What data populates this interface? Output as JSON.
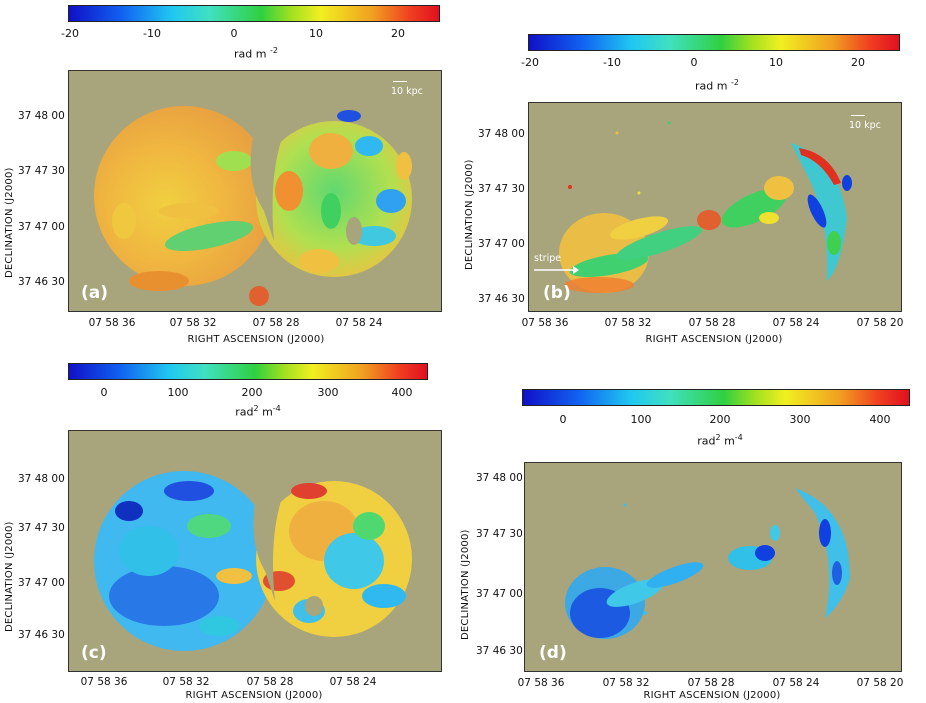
{
  "panels": {
    "a": {
      "label": "(a)",
      "colorbar_ticks": [
        "-20",
        "-10",
        "0",
        "10",
        "20"
      ],
      "unit_text": "rad m",
      "unit_exp": "-2",
      "x_ticks": [
        "07 58 36",
        "07 58 32",
        "07 58 28",
        "07 58 24"
      ],
      "y_ticks": [
        "37 48 00",
        "37 47 30",
        "37 47 00",
        "37 46 30"
      ],
      "x_title": "RIGHT ASCENSION   (J2000)",
      "y_title": "DECLINATION   (J2000)",
      "scale_label": "10 kpc"
    },
    "b": {
      "label": "(b)",
      "colorbar_ticks": [
        "-20",
        "-10",
        "0",
        "10",
        "20"
      ],
      "unit_text": "rad m",
      "unit_exp": "-2",
      "x_ticks": [
        "07 58 36",
        "07 58 32",
        "07 58 28",
        "07 58 24",
        "07 58 20"
      ],
      "y_ticks": [
        "37 48 00",
        "37 47 30",
        "37 47 00",
        "37 46 30"
      ],
      "x_title": "RIGHT ASCENSION   (J2000)",
      "y_title": "DECLINATION   (J2000)",
      "scale_label": "10 kpc",
      "annotation": "stripe"
    },
    "c": {
      "label": "(c)",
      "colorbar_ticks": [
        "0",
        "100",
        "200",
        "300",
        "400"
      ],
      "unit_text": "rad",
      "unit_exp1": "2",
      "unit_mid": " m",
      "unit_exp": "-4",
      "x_ticks": [
        "07 58 36",
        "07 58 32",
        "07 58 28",
        "07 58 24"
      ],
      "y_ticks": [
        "37 48 00",
        "37 47 30",
        "37 47 00",
        "37 46 30"
      ],
      "x_title": "RIGHT ASCENSION   (J2000)",
      "y_title": "DECLINATION   (J2000)"
    },
    "d": {
      "label": "(d)",
      "colorbar_ticks": [
        "0",
        "100",
        "200",
        "300",
        "400"
      ],
      "unit_text": "rad",
      "unit_exp1": "2",
      "unit_mid": " m",
      "unit_exp": "-4",
      "x_ticks": [
        "07 58 36",
        "07 58 32",
        "07 58 28",
        "07 58 24",
        "07 58 20"
      ],
      "y_ticks": [
        "37 48 00",
        "37 47 30",
        "37 47 00",
        "37 46 30"
      ],
      "x_title": "RIGHT ASCENSION   (J2000)",
      "y_title": "DECLINATION   (J2000)"
    }
  },
  "colors": {
    "background_map": "#a8a57c",
    "blue": "#1040e0",
    "cyan": "#30c8f0",
    "green": "#40d040",
    "yellow": "#f0e030",
    "orange": "#f0a030",
    "red": "#e03020"
  }
}
